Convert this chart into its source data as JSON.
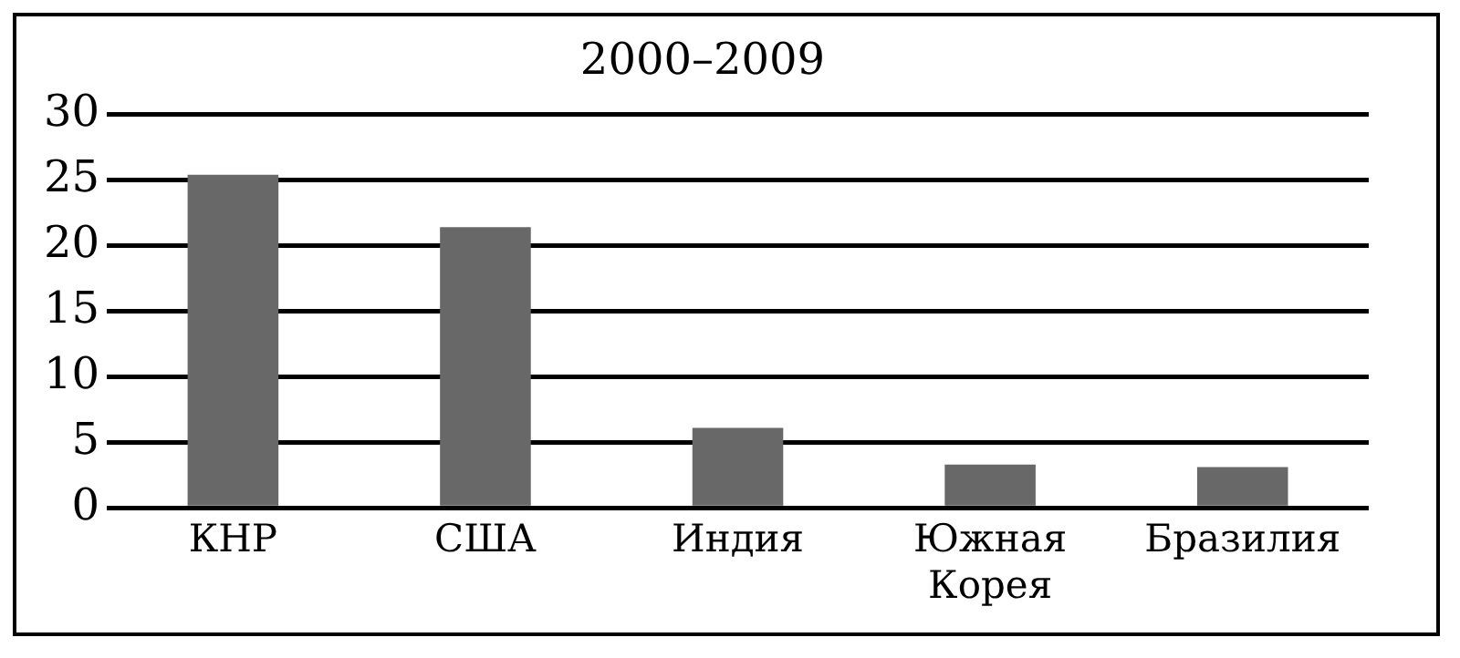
{
  "chart_data": {
    "type": "bar",
    "title": "2000–2009",
    "categories": [
      "КНР",
      "США",
      "Индия",
      "Южная Корея",
      "Бразилия"
    ],
    "values": [
      25.4,
      21.4,
      6.1,
      3.3,
      3.1
    ],
    "color": "#686868",
    "ylim": [
      0,
      30
    ],
    "yticks": [
      0,
      5,
      10,
      15,
      20,
      25,
      30
    ],
    "grid": "y",
    "legend": false
  }
}
